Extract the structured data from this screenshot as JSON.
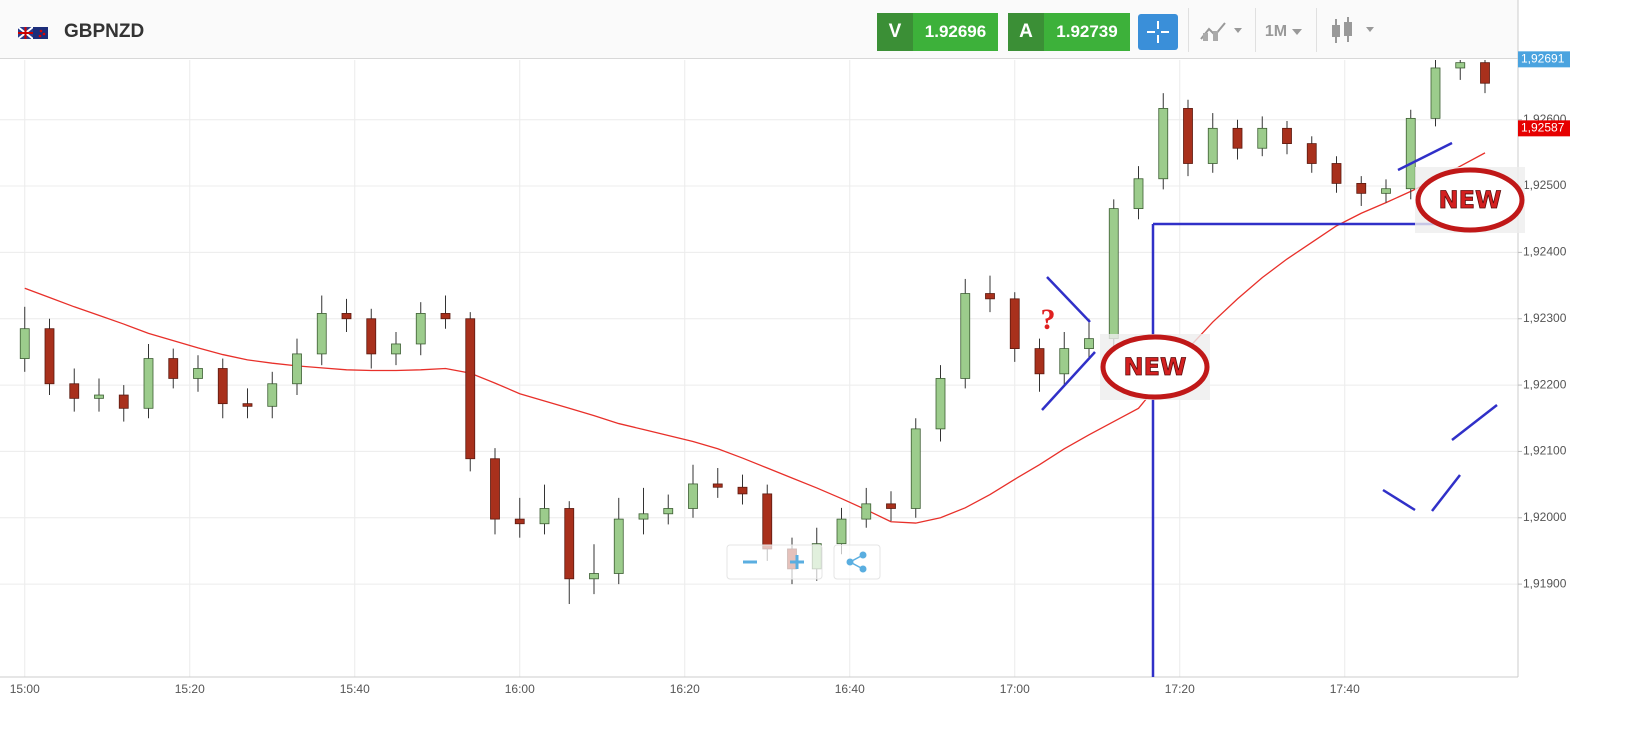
{
  "header": {
    "symbol": "GBPNZD",
    "sell_label": "V",
    "sell_price": "1.92696",
    "buy_label": "A",
    "buy_price": "1.92739",
    "timeframe": "1M"
  },
  "chart_data": {
    "type": "candlestick",
    "x": [
      "15:00",
      "15:03",
      "15:06",
      "15:09",
      "15:12",
      "15:15",
      "15:18",
      "15:21",
      "15:24",
      "15:27",
      "15:30",
      "15:33",
      "15:36",
      "15:39",
      "15:42",
      "15:45",
      "15:48",
      "15:51",
      "15:54",
      "15:57",
      "16:00",
      "16:03",
      "16:06",
      "16:09",
      "16:12",
      "16:15",
      "16:18",
      "16:21",
      "16:24",
      "16:27",
      "16:30",
      "16:33",
      "16:36",
      "16:39",
      "16:42",
      "16:45",
      "16:48",
      "16:51",
      "16:54",
      "16:57",
      "17:00",
      "17:03",
      "17:06",
      "17:09",
      "17:12",
      "17:15",
      "17:18",
      "17:21",
      "17:24",
      "17:27",
      "17:30",
      "17:33",
      "17:36",
      "17:39",
      "17:42",
      "17:45",
      "17:48",
      "17:51",
      "17:54",
      "17:57"
    ],
    "open": [
      1.9224,
      1.92285,
      1.92202,
      1.9218,
      1.92185,
      1.92165,
      1.9224,
      1.9221,
      1.92225,
      1.92172,
      1.92168,
      1.92202,
      1.92247,
      1.92308,
      1.923,
      1.92247,
      1.92262,
      1.92308,
      1.923,
      1.92089,
      1.91998,
      1.91991,
      1.92014,
      1.91908,
      1.91916,
      1.91998,
      1.92006,
      1.92014,
      1.92051,
      1.92046,
      1.92036,
      1.91953,
      1.91923,
      1.91961,
      1.91998,
      1.92021,
      1.92014,
      1.92134,
      1.9221,
      1.92338,
      1.9233,
      1.92255,
      1.92217,
      1.92255,
      1.9227,
      1.92466,
      1.92511,
      1.92617,
      1.92534,
      1.92587,
      1.92557,
      1.92587,
      1.92564,
      1.92534,
      1.92504,
      1.92489,
      1.92496,
      1.92602,
      1.92678,
      1.92686
    ],
    "high": [
      1.92318,
      1.923,
      1.92225,
      1.9221,
      1.922,
      1.92262,
      1.92255,
      1.92245,
      1.9224,
      1.92195,
      1.9222,
      1.9227,
      1.92335,
      1.9233,
      1.92315,
      1.9228,
      1.92325,
      1.92335,
      1.9231,
      1.92105,
      1.9203,
      1.9205,
      1.92025,
      1.9196,
      1.9203,
      1.92045,
      1.92035,
      1.9208,
      1.92075,
      1.92065,
      1.9205,
      1.9197,
      1.91985,
      1.92015,
      1.92045,
      1.9204,
      1.9215,
      1.9223,
      1.9236,
      1.92365,
      1.9234,
      1.9227,
      1.9228,
      1.923,
      1.9248,
      1.9253,
      1.9264,
      1.9263,
      1.9261,
      1.926,
      1.92605,
      1.92598,
      1.92575,
      1.92545,
      1.92515,
      1.9251,
      1.92615,
      1.9269,
      1.9269,
      1.9269
    ],
    "low": [
      1.9222,
      1.92185,
      1.9216,
      1.9216,
      1.92145,
      1.9215,
      1.92195,
      1.9219,
      1.9215,
      1.9215,
      1.9215,
      1.92185,
      1.9223,
      1.9228,
      1.92225,
      1.9223,
      1.92245,
      1.92285,
      1.9207,
      1.91975,
      1.9197,
      1.91975,
      1.9187,
      1.91885,
      1.919,
      1.91975,
      1.9199,
      1.92,
      1.9203,
      1.9202,
      1.91935,
      1.919,
      1.91905,
      1.91945,
      1.91985,
      1.91995,
      1.92,
      1.92115,
      1.92195,
      1.9231,
      1.92235,
      1.9219,
      1.922,
      1.9224,
      1.92255,
      1.9245,
      1.92495,
      1.92515,
      1.9252,
      1.9254,
      1.92545,
      1.92548,
      1.9252,
      1.9249,
      1.9247,
      1.92475,
      1.9248,
      1.9259,
      1.9266,
      1.9264
    ],
    "close": [
      1.92285,
      1.92202,
      1.9218,
      1.92185,
      1.92165,
      1.9224,
      1.9221,
      1.92225,
      1.92172,
      1.92168,
      1.92202,
      1.92247,
      1.92308,
      1.923,
      1.92247,
      1.92262,
      1.92308,
      1.923,
      1.92089,
      1.91998,
      1.91991,
      1.92014,
      1.91908,
      1.91916,
      1.91998,
      1.92006,
      1.92014,
      1.92051,
      1.92046,
      1.92036,
      1.91953,
      1.91923,
      1.91961,
      1.91998,
      1.92021,
      1.92014,
      1.92134,
      1.9221,
      1.92338,
      1.9233,
      1.92255,
      1.92217,
      1.92255,
      1.9227,
      1.92466,
      1.92511,
      1.92617,
      1.92534,
      1.92587,
      1.92557,
      1.92587,
      1.92564,
      1.92534,
      1.92504,
      1.92489,
      1.92496,
      1.92602,
      1.92678,
      1.92686,
      1.92655
    ],
    "up_color": "#9ccc8c",
    "down_color": "#a8301c",
    "overlays": [
      {
        "type": "line",
        "color": "#e8302a",
        "values": [
          1.92346,
          1.92332,
          1.92318,
          1.92305,
          1.92292,
          1.92278,
          1.92267,
          1.92256,
          1.92246,
          1.92238,
          1.92233,
          1.92229,
          1.92226,
          1.92223,
          1.92222,
          1.92222,
          1.92223,
          1.92225,
          1.92218,
          1.92203,
          1.92187,
          1.92176,
          1.92165,
          1.92154,
          1.92142,
          1.92133,
          1.92124,
          1.92115,
          1.92104,
          1.9209,
          1.92075,
          1.9206,
          1.92045,
          1.92029,
          1.92012,
          1.91994,
          1.91992,
          1.92,
          1.92015,
          1.92035,
          1.92058,
          1.9208,
          1.92104,
          1.92125,
          1.92145,
          1.92165,
          1.9221,
          1.92255,
          1.92295,
          1.9233,
          1.92362,
          1.9239,
          1.92415,
          1.9244,
          1.92459,
          1.92475,
          1.92492,
          1.9251,
          1.9253,
          1.9255
        ]
      }
    ],
    "xlim": [
      "14:57",
      "18:01"
    ],
    "xticks": [
      "15:00",
      "15:20",
      "15:40",
      "16:00",
      "16:20",
      "16:40",
      "17:00",
      "17:20",
      "17:40"
    ],
    "ylim": [
      1.9176,
      1.9269
    ],
    "yticks": [
      {
        "value": 1.919,
        "label": "1,91900"
      },
      {
        "value": 1.92,
        "label": "1,92000"
      },
      {
        "value": 1.921,
        "label": "1,92100"
      },
      {
        "value": 1.922,
        "label": "1,92200"
      },
      {
        "value": 1.923,
        "label": "1,92300"
      },
      {
        "value": 1.924,
        "label": "1,92400"
      },
      {
        "value": 1.925,
        "label": "1,92500"
      },
      {
        "value": 1.926,
        "label": "1,92600"
      }
    ],
    "grid": true,
    "price_markers": [
      {
        "value": 1.92691,
        "label": "1,92691",
        "color": "#4aa3df"
      },
      {
        "value": 1.92587,
        "label": "1,92587",
        "color": "#e60000"
      }
    ],
    "annotations": [
      {
        "text": "?"
      },
      {
        "text": "NEW"
      },
      {
        "text": "NEW"
      }
    ]
  }
}
